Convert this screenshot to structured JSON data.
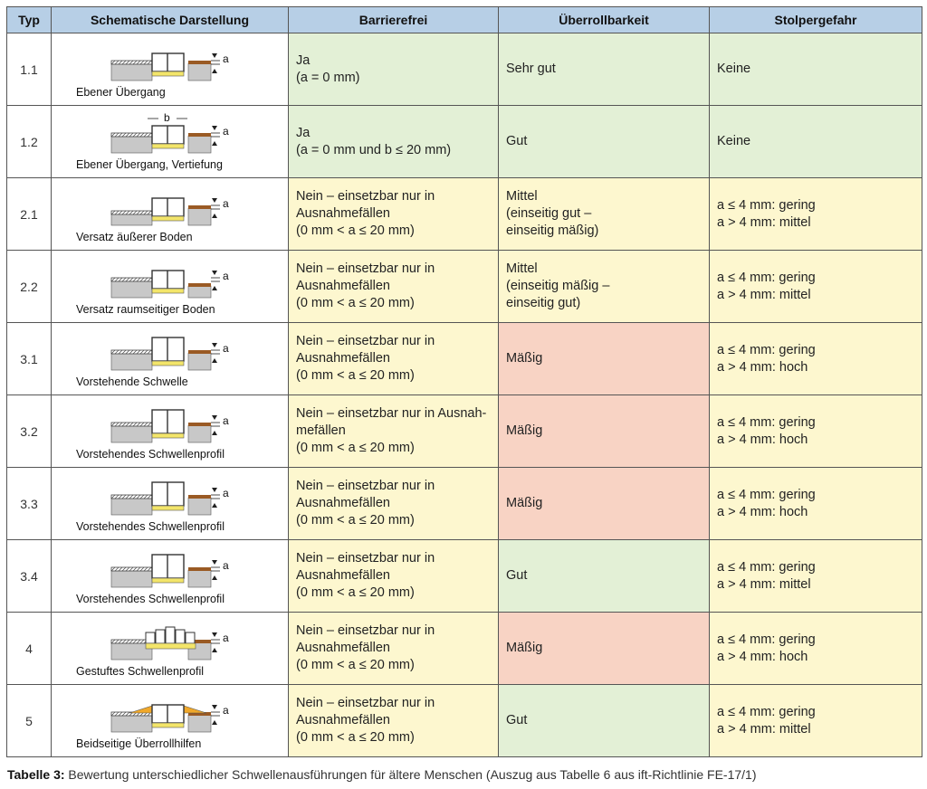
{
  "headers": [
    "Typ",
    "Schematische Darstellung",
    "Barrierefrei",
    "Überrollbarkeit",
    "Stolpergefahr"
  ],
  "rows": [
    {
      "typ": "1.1",
      "caption": "Ebener Übergang",
      "barrierefrei": [
        "Ja",
        "(a = 0 mm)"
      ],
      "ueberroll": [
        "Sehr gut"
      ],
      "stolper": [
        "Keine"
      ],
      "b_rating": "green",
      "u_rating": "green",
      "s_rating": "green"
    },
    {
      "typ": "1.2",
      "caption": "Ebener Übergang, Vertiefung",
      "barrierefrei": [
        "Ja",
        "(a = 0 mm und b ≤ 20 mm)"
      ],
      "ueberroll": [
        "Gut"
      ],
      "stolper": [
        "Keine"
      ],
      "b_rating": "green",
      "u_rating": "green",
      "s_rating": "green"
    },
    {
      "typ": "2.1",
      "caption": "Versatz äußerer Boden",
      "barrierefrei": [
        "Nein – einsetzbar nur in",
        "Ausnahmefällen",
        "(0 mm < a ≤ 20 mm)"
      ],
      "ueberroll": [
        "Mittel",
        "(einseitig gut –",
        "einseitig mäßig)"
      ],
      "stolper": [
        "a ≤ 4 mm: gering",
        "a > 4 mm: mittel"
      ],
      "b_rating": "yellow",
      "u_rating": "yellow",
      "s_rating": "yellow"
    },
    {
      "typ": "2.2",
      "caption": "Versatz raumseitiger Boden",
      "barrierefrei": [
        "Nein – einsetzbar nur in",
        "Ausnahmefällen",
        "(0 mm < a ≤ 20 mm)"
      ],
      "ueberroll": [
        "Mittel",
        "(einseitig mäßig –",
        "einseitig gut)"
      ],
      "stolper": [
        "a ≤ 4 mm: gering",
        "a > 4 mm: mittel"
      ],
      "b_rating": "yellow",
      "u_rating": "yellow",
      "s_rating": "yellow"
    },
    {
      "typ": "3.1",
      "caption": "Vorstehende Schwelle",
      "barrierefrei": [
        "Nein – einsetzbar nur in",
        "Ausnahmefällen",
        "(0 mm < a ≤ 20 mm)"
      ],
      "ueberroll": [
        "Mäßig"
      ],
      "stolper": [
        "a ≤ 4 mm: gering",
        "a > 4 mm: hoch"
      ],
      "b_rating": "yellow",
      "u_rating": "red",
      "s_rating": "yellow"
    },
    {
      "typ": "3.2",
      "caption": "Vorstehendes Schwellenprofil",
      "barrierefrei": [
        "Nein – einsetzbar nur in Ausnah-",
        "mefällen",
        "(0 mm < a ≤ 20 mm)"
      ],
      "ueberroll": [
        "Mäßig"
      ],
      "stolper": [
        "a ≤ 4 mm: gering",
        "a > 4 mm: hoch"
      ],
      "b_rating": "yellow",
      "u_rating": "red",
      "s_rating": "yellow"
    },
    {
      "typ": "3.3",
      "caption": "Vorstehendes Schwellenprofil",
      "barrierefrei": [
        "Nein – einsetzbar nur in",
        "Ausnahmefällen",
        "(0 mm < a ≤ 20 mm)"
      ],
      "ueberroll": [
        "Mäßig"
      ],
      "stolper": [
        "a ≤ 4 mm: gering",
        "a > 4 mm: hoch"
      ],
      "b_rating": "yellow",
      "u_rating": "red",
      "s_rating": "yellow"
    },
    {
      "typ": "3.4",
      "caption": "Vorstehendes Schwellenprofil",
      "barrierefrei": [
        "Nein – einsetzbar nur in",
        "Ausnahmefällen",
        "(0 mm < a ≤ 20 mm)"
      ],
      "ueberroll": [
        "Gut"
      ],
      "stolper": [
        "a ≤ 4 mm: gering",
        "a > 4 mm: mittel"
      ],
      "b_rating": "yellow",
      "u_rating": "green",
      "s_rating": "yellow"
    },
    {
      "typ": "4",
      "caption": "Gestuftes Schwellenprofil",
      "barrierefrei": [
        "Nein – einsetzbar nur in",
        "Ausnahmefällen",
        "(0 mm < a ≤ 20 mm)"
      ],
      "ueberroll": [
        "Mäßig"
      ],
      "stolper": [
        "a ≤ 4 mm: gering",
        "a > 4 mm: hoch"
      ],
      "b_rating": "yellow",
      "u_rating": "red",
      "s_rating": "yellow"
    },
    {
      "typ": "5",
      "caption": "Beidseitige Überrollhilfen",
      "barrierefrei": [
        "Nein – einsetzbar nur in",
        "Ausnahmefällen",
        "(0 mm < a ≤ 20 mm)"
      ],
      "ueberroll": [
        "Gut"
      ],
      "stolper": [
        "a ≤ 4 mm: gering",
        "a > 4 mm: mittel"
      ],
      "b_rating": "yellow",
      "u_rating": "green",
      "s_rating": "yellow"
    }
  ],
  "diagram_labels": {
    "a": "a",
    "b": "b"
  },
  "footer": {
    "label": "Tabelle 3:",
    "text": " Bewertung unterschiedlicher Schwellenausführungen für ältere Menschen (Auszug aus Tabelle 6 aus ift-Richtlinie FE-17/1)"
  },
  "colors": {
    "header": "#b7cfe6",
    "green": "#e3f0d6",
    "yellow": "#fdf7cf",
    "red": "#f8d3c4",
    "floor": "#c8c8c8",
    "wood": "#9a5a24",
    "profile_fill": "#f3e56a",
    "ramp": "#f0a82a"
  }
}
